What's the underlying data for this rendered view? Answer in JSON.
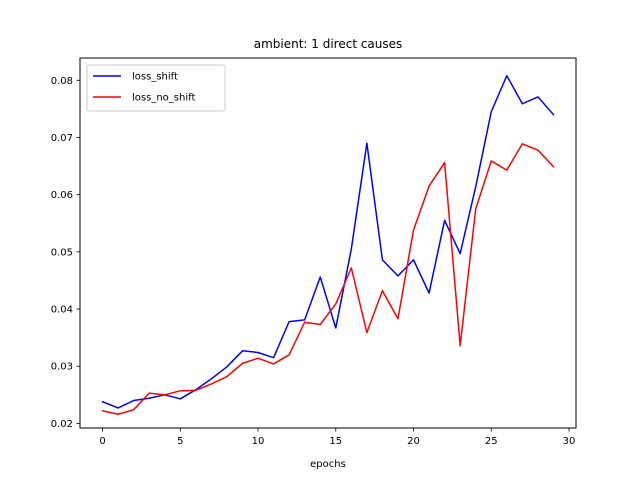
{
  "chart_data": {
    "type": "line",
    "title": "ambient: 1 direct causes",
    "xlabel": "epochs",
    "ylabel": "",
    "xlim": [
      -1.45,
      30.45
    ],
    "ylim": [
      0.0192,
      0.0839
    ],
    "xticks": [
      0,
      5,
      10,
      15,
      20,
      25,
      30
    ],
    "yticks": [
      0.02,
      0.03,
      0.04,
      0.05,
      0.06,
      0.07,
      0.08
    ],
    "grid": false,
    "legend_position": "top-left",
    "x": [
      0,
      1,
      2,
      3,
      4,
      5,
      6,
      7,
      8,
      9,
      10,
      11,
      12,
      13,
      14,
      15,
      16,
      17,
      18,
      19,
      20,
      21,
      22,
      23,
      24,
      25,
      26,
      27,
      28,
      29
    ],
    "series": [
      {
        "name": "loss_shift",
        "color": "#0000ff",
        "values": [
          0.0238,
          0.0227,
          0.024,
          0.0244,
          0.025,
          0.0243,
          0.0259,
          0.0278,
          0.0299,
          0.0327,
          0.0324,
          0.0315,
          0.0378,
          0.0381,
          0.0456,
          0.0367,
          0.0505,
          0.069,
          0.0486,
          0.0458,
          0.0486,
          0.0428,
          0.0555,
          0.0497,
          0.0614,
          0.0745,
          0.0808,
          0.0759,
          0.0771,
          0.074
        ]
      },
      {
        "name": "loss_no_shift",
        "color": "#ff0000",
        "values": [
          0.0222,
          0.0216,
          0.0224,
          0.0253,
          0.025,
          0.0257,
          0.0258,
          0.0269,
          0.0282,
          0.0305,
          0.0314,
          0.0304,
          0.032,
          0.0377,
          0.0373,
          0.0409,
          0.0472,
          0.0359,
          0.0432,
          0.0383,
          0.0538,
          0.0615,
          0.0656,
          0.0336,
          0.0575,
          0.0659,
          0.0643,
          0.0689,
          0.0678,
          0.0649
        ]
      }
    ]
  }
}
